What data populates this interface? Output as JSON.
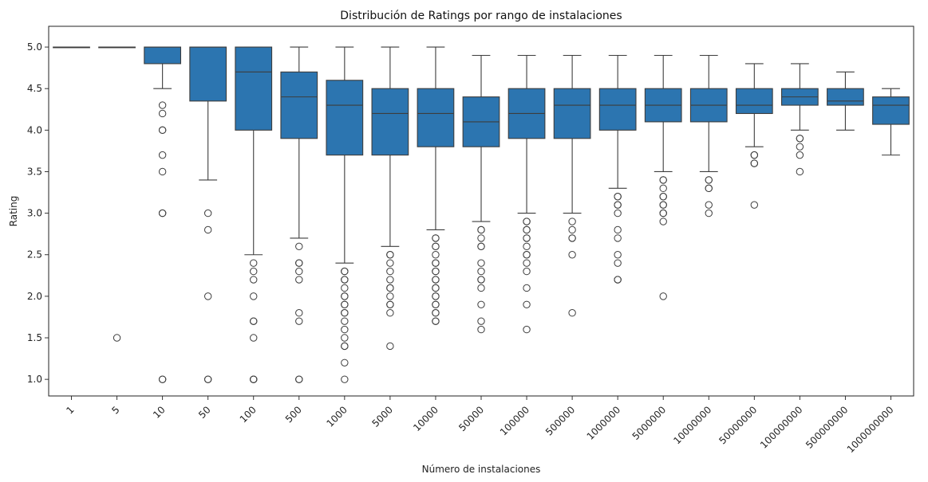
{
  "chart_data": {
    "type": "box",
    "title": "Distribución de Ratings por rango de instalaciones",
    "xlabel": "Número de instalaciones",
    "ylabel": "Rating",
    "ylim": [
      0.8,
      5.25
    ],
    "yticks": [
      "1.0",
      "1.5",
      "2.0",
      "2.5",
      "3.0",
      "3.5",
      "4.0",
      "4.5",
      "5.0"
    ],
    "grid": false,
    "legend": "none",
    "box_color": "#2c75b0",
    "line_color": "#3d3d3d",
    "categories": [
      "1",
      "5",
      "10",
      "50",
      "100",
      "500",
      "1000",
      "5000",
      "10000",
      "50000",
      "100000",
      "500000",
      "1000000",
      "5000000",
      "10000000",
      "50000000",
      "100000000",
      "500000000",
      "1000000000"
    ],
    "boxes": [
      {
        "whislo": 5.0,
        "q1": 5.0,
        "med": 5.0,
        "q3": 5.0,
        "whishi": 5.0,
        "fliers": []
      },
      {
        "whislo": 5.0,
        "q1": 5.0,
        "med": 5.0,
        "q3": 5.0,
        "whishi": 5.0,
        "fliers": [
          1.5
        ]
      },
      {
        "whislo": 4.5,
        "q1": 4.8,
        "med": 5.0,
        "q3": 5.0,
        "whishi": 5.0,
        "fliers": [
          4.3,
          4.2,
          4.0,
          4.0,
          3.7,
          3.5,
          3.0,
          3.0,
          1.0,
          1.0
        ]
      },
      {
        "whislo": 3.4,
        "q1": 4.35,
        "med": 5.0,
        "q3": 5.0,
        "whishi": 5.0,
        "fliers": [
          3.0,
          2.8,
          2.0,
          1.0,
          1.0
        ]
      },
      {
        "whislo": 2.5,
        "q1": 4.0,
        "med": 4.7,
        "q3": 5.0,
        "whishi": 5.0,
        "fliers": [
          2.4,
          2.3,
          2.2,
          2.0,
          1.7,
          1.7,
          1.5,
          1.0,
          1.0,
          1.0
        ]
      },
      {
        "whislo": 2.7,
        "q1": 3.9,
        "med": 4.4,
        "q3": 4.7,
        "whishi": 5.0,
        "fliers": [
          2.6,
          2.4,
          2.4,
          2.3,
          2.2,
          1.8,
          1.7,
          1.0,
          1.0
        ]
      },
      {
        "whislo": 2.4,
        "q1": 3.7,
        "med": 4.3,
        "q3": 4.6,
        "whishi": 5.0,
        "fliers": [
          2.3,
          2.3,
          2.2,
          2.2,
          2.1,
          2.0,
          2.0,
          1.9,
          1.9,
          1.8,
          1.8,
          1.7,
          1.6,
          1.5,
          1.4,
          1.4,
          1.2,
          1.0
        ]
      },
      {
        "whislo": 2.6,
        "q1": 3.7,
        "med": 4.2,
        "q3": 4.5,
        "whishi": 5.0,
        "fliers": [
          2.5,
          2.5,
          2.4,
          2.3,
          2.2,
          2.1,
          2.1,
          2.0,
          1.9,
          1.9,
          1.8,
          1.4
        ]
      },
      {
        "whislo": 2.8,
        "q1": 3.8,
        "med": 4.2,
        "q3": 4.5,
        "whishi": 5.0,
        "fliers": [
          2.7,
          2.7,
          2.6,
          2.6,
          2.5,
          2.4,
          2.4,
          2.3,
          2.3,
          2.2,
          2.2,
          2.1,
          2.1,
          2.0,
          2.0,
          1.9,
          1.9,
          1.8,
          1.8,
          1.7,
          1.7
        ]
      },
      {
        "whislo": 2.9,
        "q1": 3.8,
        "med": 4.1,
        "q3": 4.4,
        "whishi": 4.9,
        "fliers": [
          2.8,
          2.8,
          2.7,
          2.6,
          2.6,
          2.4,
          2.3,
          2.2,
          2.2,
          2.1,
          1.9,
          1.7,
          1.6
        ]
      },
      {
        "whislo": 3.0,
        "q1": 3.9,
        "med": 4.2,
        "q3": 4.5,
        "whishi": 4.9,
        "fliers": [
          2.9,
          2.9,
          2.8,
          2.8,
          2.7,
          2.7,
          2.6,
          2.5,
          2.5,
          2.4,
          2.3,
          2.1,
          1.9,
          1.6
        ]
      },
      {
        "whislo": 3.0,
        "q1": 3.9,
        "med": 4.3,
        "q3": 4.5,
        "whishi": 4.9,
        "fliers": [
          2.9,
          2.8,
          2.7,
          2.7,
          2.5,
          1.8
        ]
      },
      {
        "whislo": 3.3,
        "q1": 4.0,
        "med": 4.3,
        "q3": 4.5,
        "whishi": 4.9,
        "fliers": [
          3.2,
          3.2,
          3.1,
          3.1,
          3.0,
          2.8,
          2.7,
          2.5,
          2.4,
          2.2,
          2.2
        ]
      },
      {
        "whislo": 3.5,
        "q1": 4.1,
        "med": 4.3,
        "q3": 4.5,
        "whishi": 4.9,
        "fliers": [
          3.4,
          3.4,
          3.3,
          3.2,
          3.2,
          3.1,
          3.1,
          3.0,
          3.0,
          2.9,
          2.0
        ]
      },
      {
        "whislo": 3.5,
        "q1": 4.1,
        "med": 4.3,
        "q3": 4.5,
        "whishi": 4.9,
        "fliers": [
          3.4,
          3.4,
          3.3,
          3.3,
          3.1,
          3.0
        ]
      },
      {
        "whislo": 3.8,
        "q1": 4.2,
        "med": 4.3,
        "q3": 4.5,
        "whishi": 4.8,
        "fliers": [
          3.7,
          3.7,
          3.6,
          3.6,
          3.1
        ]
      },
      {
        "whislo": 4.0,
        "q1": 4.3,
        "med": 4.4,
        "q3": 4.5,
        "whishi": 4.8,
        "fliers": [
          3.9,
          3.9,
          3.8,
          3.7,
          3.5
        ]
      },
      {
        "whislo": 4.0,
        "q1": 4.3,
        "med": 4.35,
        "q3": 4.5,
        "whishi": 4.7,
        "fliers": []
      },
      {
        "whislo": 3.7,
        "q1": 4.07,
        "med": 4.3,
        "q3": 4.4,
        "whishi": 4.5,
        "fliers": []
      }
    ]
  }
}
